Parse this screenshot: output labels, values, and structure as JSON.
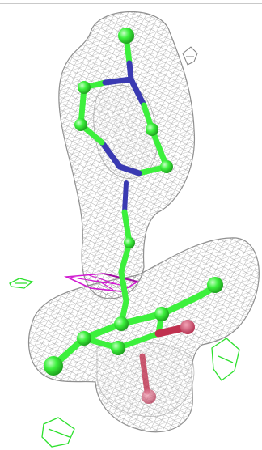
{
  "scene": {
    "background": "#ffffff",
    "colors": {
      "density_mesh": "#8f8f8f",
      "density_mesh_light": "#c4c4c4",
      "carbon": "#3cf03c",
      "nitrogen": "#3a3ab2",
      "oxygen": "#c0314f",
      "magenta_feature": "#d11ad1",
      "stray_mesh": "#2ee02e"
    },
    "mesh_blobs": [
      "upper-density-lobe",
      "stem-density",
      "lower-ring-density"
    ],
    "atom_labels": []
  }
}
